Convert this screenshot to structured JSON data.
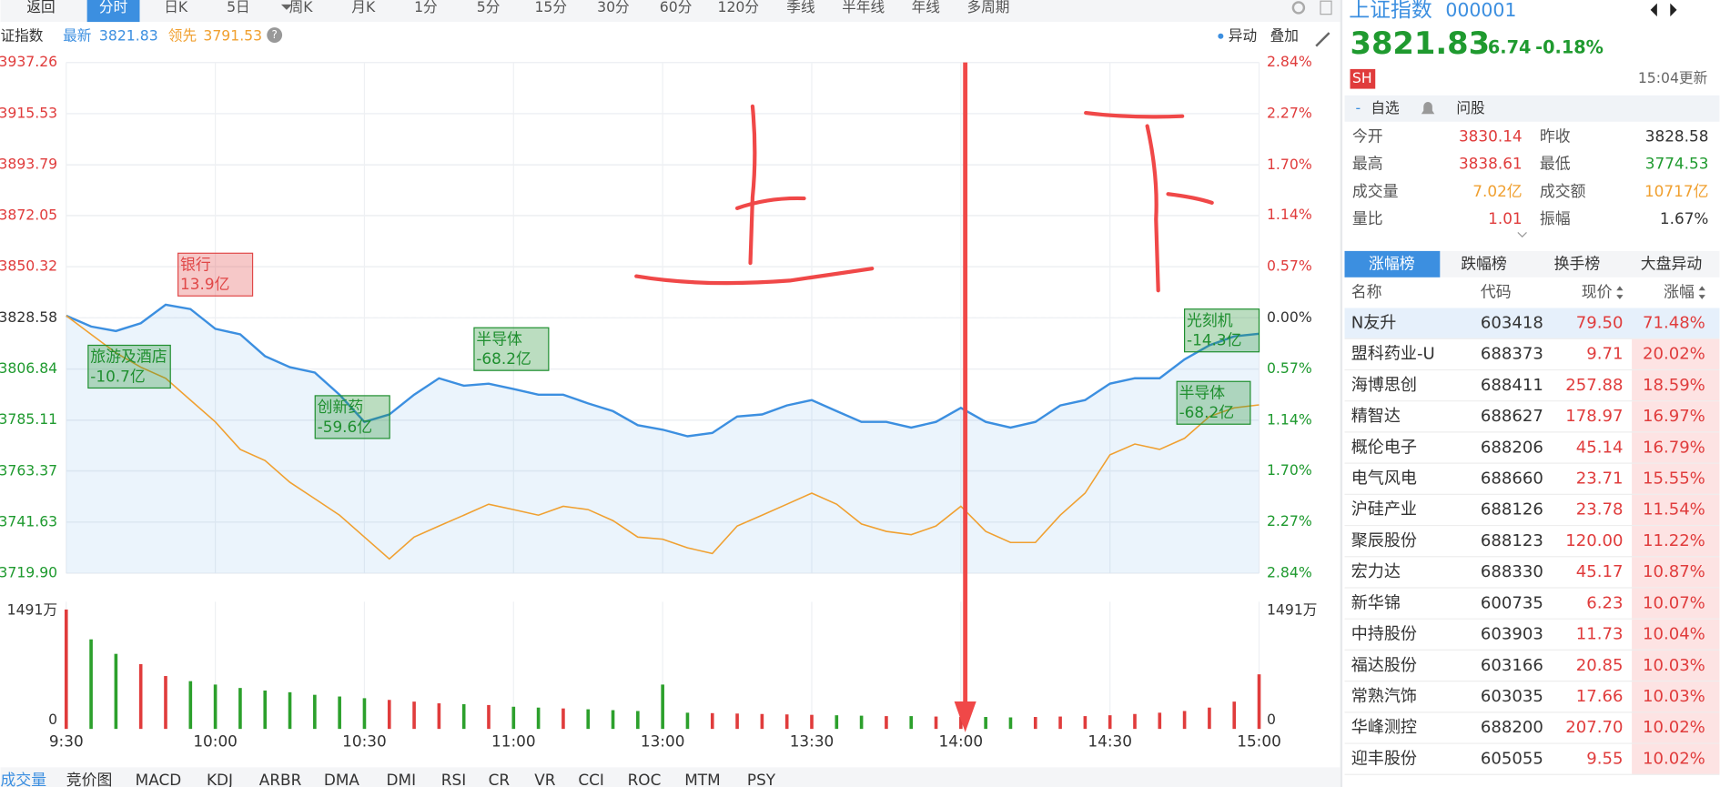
{
  "toolbar": {
    "back": "返回",
    "tabs": [
      "分时",
      "日K",
      "5日",
      "周K",
      "月K",
      "1分",
      "5分",
      "15分",
      "30分",
      "60分",
      "120分",
      "季线",
      "半年线",
      "年线",
      "多周期"
    ],
    "active": 0
  },
  "info": {
    "name": "证指数",
    "latest": "3821.83",
    "lead": "3791.53",
    "help": "?",
    "actions": [
      "异动",
      "叠加"
    ]
  },
  "chart_data": {
    "type": "line",
    "x": [
      0,
      5,
      10,
      15,
      20,
      25,
      30,
      35,
      40,
      45,
      50,
      55,
      60,
      65,
      70,
      75,
      80,
      85,
      90,
      95,
      100,
      105,
      110,
      115,
      120,
      125,
      130,
      135,
      140,
      145,
      150,
      155,
      160,
      165,
      170,
      175,
      180,
      185,
      190,
      195,
      200,
      205,
      210,
      215,
      220,
      225,
      230,
      235,
      240
    ],
    "xlim": [
      0,
      240
    ],
    "xticks": [
      {
        "value": 0,
        "label": "9:30"
      },
      {
        "value": 30,
        "label": "10:00"
      },
      {
        "value": 60,
        "label": "10:30"
      },
      {
        "value": 90,
        "label": "11:00"
      },
      {
        "value": 120,
        "label": "13:00"
      },
      {
        "value": 150,
        "label": "13:30"
      },
      {
        "value": 180,
        "label": "14:00"
      },
      {
        "value": 210,
        "label": "14:30"
      },
      {
        "value": 240,
        "label": "15:00"
      }
    ],
    "ylim": [
      3719.9,
      3937.26
    ],
    "yticks": [
      3937.26,
      3915.53,
      3893.79,
      3872.05,
      3850.32,
      3828.58,
      3806.84,
      3785.11,
      3763.37,
      3741.63,
      {
        "value": 3719.9,
        "label": "3719.90"
      }
    ],
    "y2lim": [
      -2.84,
      2.84
    ],
    "y2ticks": [
      {
        "value": 2.84,
        "label": "2.84%"
      },
      {
        "value": 2.27,
        "label": "2.27%"
      },
      {
        "value": 1.7,
        "label": "1.70%"
      },
      {
        "value": 1.14,
        "label": "1.14%"
      },
      {
        "value": 0.57,
        "label": "0.57%"
      },
      {
        "value": 0,
        "label": "0.00%"
      },
      {
        "value": -0.57,
        "label": "0.57%"
      },
      {
        "value": -1.14,
        "label": "1.14%"
      },
      {
        "value": -1.7,
        "label": "1.70%"
      },
      {
        "value": -2.27,
        "label": "2.27%"
      },
      {
        "value": -2.84,
        "label": "2.84%"
      }
    ],
    "grid": true,
    "series": [
      {
        "name": "最新",
        "color": "#3c8fe0",
        "area": true,
        "values": [
          3829.5,
          3824.9,
          3823.0,
          3826.3,
          3834.2,
          3832.3,
          3823.9,
          3821.6,
          3812.3,
          3807.6,
          3805.3,
          3795.9,
          3784.3,
          3787.5,
          3795.9,
          3802.9,
          3799.7,
          3800.6,
          3798.3,
          3795.9,
          3795.9,
          3792.2,
          3788.9,
          3782.9,
          3781.0,
          3778.2,
          3779.6,
          3786.6,
          3787.5,
          3791.3,
          3793.6,
          3788.9,
          3784.3,
          3784.3,
          3781.9,
          3784.3,
          3790.3,
          3784.3,
          3781.9,
          3784.3,
          3791.3,
          3793.6,
          3800.6,
          3802.9,
          3802.9,
          3810.9,
          3816.9,
          3820.7,
          3821.83
        ]
      },
      {
        "name": "领先",
        "color": "#f0a030",
        "values": [
          3829.5,
          3821.6,
          3813.7,
          3807.6,
          3802.9,
          3793.6,
          3784.3,
          3772.6,
          3767.9,
          3758.6,
          3751.6,
          3744.6,
          3735.3,
          3726.0,
          3735.3,
          3740.0,
          3744.6,
          3749.3,
          3747.0,
          3744.6,
          3748.4,
          3747.0,
          3742.3,
          3735.3,
          3734.4,
          3730.7,
          3728.3,
          3740.0,
          3744.6,
          3749.3,
          3754.0,
          3749.3,
          3740.9,
          3737.7,
          3736.3,
          3740.0,
          3748.4,
          3737.7,
          3733.0,
          3733.0,
          3744.6,
          3754.0,
          3770.3,
          3774.9,
          3772.6,
          3777.3,
          3786.6,
          3790.3,
          3791.53
        ]
      }
    ],
    "annotations": [
      {
        "text": "银行",
        "amount": "13.9亿",
        "color": "#e04848"
      },
      {
        "text": "旅游及酒店",
        "amount": "-10.7亿",
        "color": "#1f8f2f"
      },
      {
        "text": "创新药",
        "amount": "-59.6亿",
        "color": "#1f8f2f"
      },
      {
        "text": "半导体",
        "amount": "-68.2亿",
        "color": "#1f8f2f"
      },
      {
        "text": "光刻机",
        "amount": "-14.3亿",
        "color": "#1f8f2f"
      },
      {
        "text": "半导体",
        "amount": "-68.2亿",
        "color": "#1f8f2f"
      }
    ],
    "volume": {
      "up_color": "#e03c3c",
      "down_color": "#2ca02c",
      "ylim": [
        0,
        1491
      ],
      "yticks": [
        {
          "value": 1491,
          "label": "1491万"
        },
        0
      ],
      "values": [
        1400,
        1050,
        880,
        760,
        620,
        560,
        520,
        480,
        450,
        430,
        400,
        380,
        360,
        340,
        320,
        300,
        290,
        280,
        260,
        250,
        240,
        230,
        220,
        210,
        520,
        190,
        185,
        180,
        175,
        170,
        165,
        160,
        155,
        150,
        150,
        145,
        140,
        140,
        135,
        140,
        145,
        150,
        160,
        175,
        190,
        210,
        250,
        320,
        640
      ]
    }
  },
  "indicator_tabs": [
    "成交量",
    "竞价图",
    "MACD",
    "KDJ",
    "ARBR",
    "DMA",
    "DMI",
    "RSI",
    "CR",
    "VR",
    "CCI",
    "ROC",
    "MTM",
    "PSY"
  ],
  "quote": {
    "name": "上证指数",
    "code": "000001",
    "price": "3821.83",
    "change": "-6.74",
    "change_pct": "-0.18%",
    "market": "SH",
    "updated": "15:04更新",
    "actions": [
      "自选",
      "问股"
    ],
    "stats": [
      [
        "今开",
        "3830.14",
        "昨收",
        "3828.58"
      ],
      [
        "最高",
        "3838.61",
        "最低",
        "3774.53"
      ],
      [
        "成交量",
        "7.02亿",
        "成交额",
        "10717亿"
      ],
      [
        "量比",
        "1.01",
        "振幅",
        "1.67%"
      ]
    ]
  },
  "ranking": {
    "tabs": [
      "涨幅榜",
      "跌幅榜",
      "换手榜",
      "大盘异动"
    ],
    "columns": [
      "名称",
      "代码",
      "现价",
      "涨幅"
    ],
    "rows": [
      [
        "N友升",
        "603418",
        "79.50",
        "71.48%"
      ],
      [
        "盟科药业-U",
        "688373",
        "9.71",
        "20.02%"
      ],
      [
        "海博思创",
        "688411",
        "257.88",
        "18.59%"
      ],
      [
        "精智达",
        "688627",
        "178.97",
        "16.97%"
      ],
      [
        "概伦电子",
        "688206",
        "45.14",
        "16.79%"
      ],
      [
        "电气风电",
        "688660",
        "23.71",
        "15.55%"
      ],
      [
        "沪硅产业",
        "688126",
        "23.78",
        "11.54%"
      ],
      [
        "聚辰股份",
        "688123",
        "120.00",
        "11.22%"
      ],
      [
        "宏力达",
        "688330",
        "45.17",
        "10.87%"
      ],
      [
        "新华锦",
        "600735",
        "6.23",
        "10.07%"
      ],
      [
        "中持股份",
        "603903",
        "11.73",
        "10.04%"
      ],
      [
        "福达股份",
        "603166",
        "20.85",
        "10.03%"
      ],
      [
        "常熟汽饰",
        "603035",
        "17.66",
        "10.03%"
      ],
      [
        "华峰测控",
        "688200",
        "207.70",
        "10.02%"
      ],
      [
        "迎丰股份",
        "605055",
        "9.55",
        "10.02%"
      ]
    ]
  }
}
